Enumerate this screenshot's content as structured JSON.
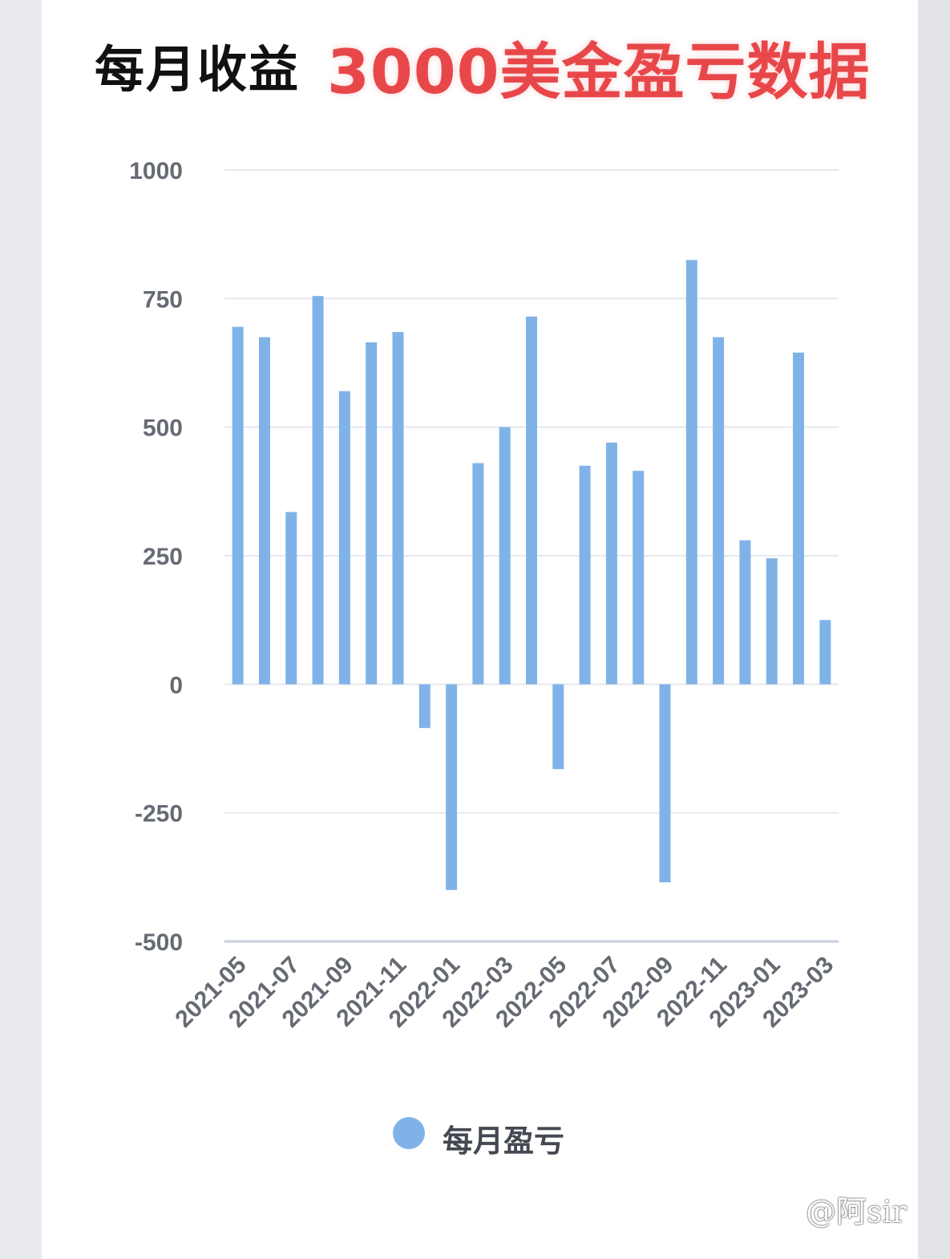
{
  "title": {
    "left": "每月收益",
    "right": "3000美金盈亏数据"
  },
  "watermark": "@阿sir",
  "legend": {
    "label": "每月盈亏",
    "color": "#7fb3e8"
  },
  "chart_data": {
    "type": "bar",
    "title": "",
    "xlabel": "",
    "ylabel": "",
    "ylim": [
      -500,
      1000
    ],
    "yticks": [
      1000,
      750,
      500,
      250,
      0,
      -250,
      -500
    ],
    "grid": true,
    "legend_position": "bottom",
    "categories": [
      "2021-05",
      "2021-06",
      "2021-07",
      "2021-08",
      "2021-09",
      "2021-10",
      "2021-11",
      "2021-12",
      "2022-01",
      "2022-02",
      "2022-03",
      "2022-04",
      "2022-05",
      "2022-06",
      "2022-07",
      "2022-08",
      "2022-09",
      "2022-10",
      "2022-11",
      "2022-12",
      "2023-01",
      "2023-02",
      "2023-03"
    ],
    "xtick_labels": [
      "2021-05",
      "2021-07",
      "2021-09",
      "2021-11",
      "2022-01",
      "2022-03",
      "2022-05",
      "2022-07",
      "2022-09",
      "2022-11",
      "2023-01",
      "2023-03"
    ],
    "series": [
      {
        "name": "每月盈亏",
        "color": "#7fb3e8",
        "values": [
          695,
          675,
          335,
          755,
          570,
          665,
          685,
          -85,
          -400,
          430,
          500,
          715,
          -165,
          425,
          470,
          415,
          -385,
          825,
          675,
          280,
          245,
          645,
          125
        ]
      }
    ]
  }
}
